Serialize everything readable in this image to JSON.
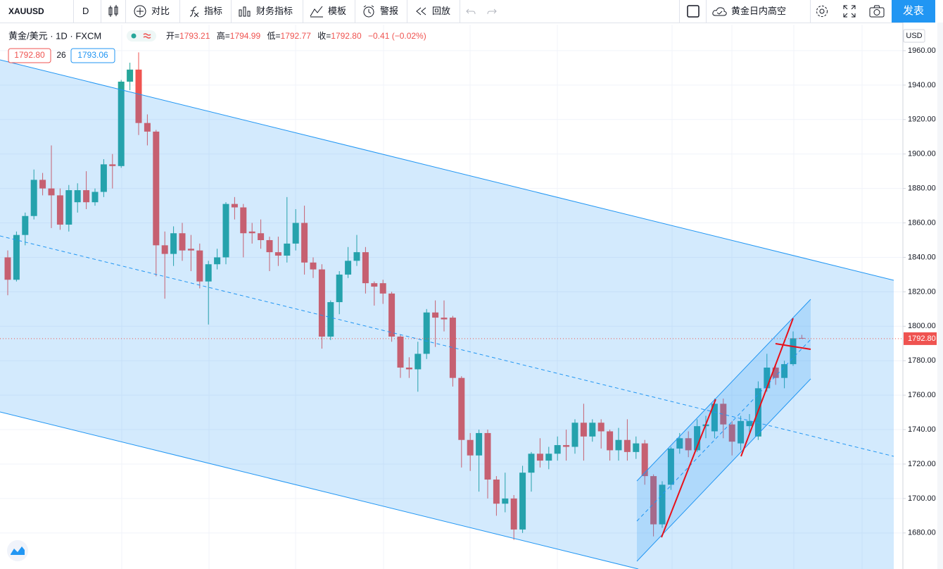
{
  "toolbar": {
    "symbol": "XAUUSD",
    "interval": "D",
    "buttons": [
      "对比",
      "指标",
      "财务指标",
      "模板",
      "警报",
      "回放"
    ],
    "layout_name": "黄金日内高空",
    "publish": "发表"
  },
  "legend": {
    "title": "黄金/美元 · 1D · FXCM",
    "open_label": "开=",
    "open": "1793.21",
    "high_label": "高=",
    "high": "1794.99",
    "low_label": "低=",
    "low": "1792.77",
    "close_label": "收=",
    "close": "1792.80",
    "change": "−0.41 (−0.02%)",
    "bid": "1792.80",
    "spread": "26",
    "ask": "1793.06"
  },
  "chart_data": {
    "type": "candlestick",
    "open": [
      1840,
      1827,
      1853,
      1864,
      1885,
      1880,
      1876,
      1859,
      1872,
      1879,
      1872,
      1878,
      1894,
      1893,
      1942,
      1949,
      1918,
      1913,
      1847,
      1842,
      1854,
      1845,
      1844,
      1826,
      1836,
      1840,
      1871,
      1869,
      1855,
      1854,
      1850,
      1843,
      1841,
      1848,
      1860,
      1837,
      1833,
      1794,
      1814,
      1830,
      1838,
      1843,
      1825,
      1825,
      1819,
      1794,
      1776,
      1775,
      1784,
      1808,
      1805,
      1805,
      1770,
      1734,
      1725,
      1738,
      1711,
      1697,
      1700,
      1682,
      1715,
      1726,
      1722,
      1726,
      1731,
      1730,
      1744,
      1736,
      1744,
      1739,
      1728,
      1734,
      1727,
      1732,
      1713,
      1685,
      1708,
      1729,
      1735,
      1728,
      1742,
      1739,
      1755,
      1743,
      1732,
      1742,
      1736,
      1764,
      1776,
      1770,
      1778,
      1793.21
    ],
    "high": [
      1844,
      1855,
      1866,
      1891,
      1889,
      1905,
      1880,
      1882,
      1883,
      1890,
      1880,
      1897,
      1900,
      1943,
      1953,
      1959,
      1923,
      1914,
      1855,
      1858,
      1860,
      1853,
      1848,
      1838,
      1845,
      1872,
      1875,
      1871,
      1860,
      1862,
      1852,
      1852,
      1875,
      1868,
      1870,
      1840,
      1836,
      1815,
      1832,
      1846,
      1853,
      1846,
      1826,
      1827,
      1820,
      1795,
      1782,
      1791,
      1810,
      1815,
      1815,
      1806,
      1771,
      1738,
      1740,
      1740,
      1713,
      1715,
      1702,
      1719,
      1727,
      1735,
      1730,
      1736,
      1740,
      1746,
      1755,
      1746,
      1746,
      1740,
      1741,
      1746,
      1736,
      1734,
      1714,
      1710,
      1730,
      1738,
      1739,
      1746,
      1748,
      1758,
      1758,
      1745,
      1748,
      1749,
      1768,
      1784,
      1777,
      1780,
      1797,
      1794.99
    ],
    "low": [
      1818,
      1826,
      1847,
      1862,
      1876,
      1857,
      1856,
      1855,
      1866,
      1868,
      1870,
      1875,
      1880,
      1892,
      1937,
      1911,
      1905,
      1829,
      1816,
      1835,
      1838,
      1832,
      1822,
      1801,
      1833,
      1836,
      1862,
      1840,
      1848,
      1845,
      1832,
      1835,
      1837,
      1844,
      1830,
      1828,
      1787,
      1792,
      1807,
      1828,
      1835,
      1819,
      1812,
      1813,
      1791,
      1770,
      1770,
      1762,
      1781,
      1788,
      1797,
      1765,
      1718,
      1716,
      1704,
      1700,
      1690,
      1692,
      1676,
      1680,
      1704,
      1718,
      1717,
      1722,
      1722,
      1726,
      1722,
      1733,
      1729,
      1722,
      1722,
      1722,
      1723,
      1708,
      1678,
      1683,
      1705,
      1726,
      1724,
      1727,
      1735,
      1735,
      1735,
      1725,
      1728,
      1737,
      1734,
      1762,
      1766,
      1764,
      1777,
      1792.77
    ],
    "close": [
      1827,
      1853,
      1864,
      1885,
      1880,
      1876,
      1859,
      1879,
      1879,
      1872,
      1878,
      1894,
      1893,
      1942,
      1949,
      1918,
      1913,
      1847,
      1842,
      1854,
      1844,
      1844,
      1826,
      1836,
      1840,
      1871,
      1869,
      1854,
      1854,
      1850,
      1843,
      1841,
      1848,
      1860,
      1837,
      1833,
      1794,
      1814,
      1830,
      1838,
      1843,
      1825,
      1823,
      1819,
      1794,
      1776,
      1775,
      1784,
      1808,
      1805,
      1804,
      1770,
      1734,
      1725,
      1738,
      1711,
      1697,
      1700,
      1682,
      1715,
      1726,
      1722,
      1726,
      1731,
      1730,
      1744,
      1736,
      1744,
      1739,
      1728,
      1734,
      1727,
      1732,
      1713,
      1685,
      1708,
      1729,
      1735,
      1728,
      1742,
      1743,
      1755,
      1743,
      1733,
      1745,
      1745,
      1764,
      1776,
      1770,
      1778,
      1793,
      1792.8
    ],
    "up_color": "#26a69a",
    "down_color": "#ef5350",
    "ylim": [
      1660.3,
      1975.1
    ],
    "yticks": [
      {
        "value": 1680,
        "label": "1680.00"
      },
      {
        "value": 1700,
        "label": "1700.00"
      },
      {
        "value": 1720,
        "label": "1720.00"
      },
      {
        "value": 1740,
        "label": "1740.00"
      },
      {
        "value": 1760,
        "label": "1760.00"
      },
      {
        "value": 1780,
        "label": "1780.00"
      },
      {
        "value": 1800,
        "label": "1800.00"
      },
      {
        "value": 1820,
        "label": "1820.00"
      },
      {
        "value": 1840,
        "label": "1840.00"
      },
      {
        "value": 1860,
        "label": "1860.00"
      },
      {
        "value": 1880,
        "label": "1880.00"
      },
      {
        "value": 1900,
        "label": "1900.00"
      },
      {
        "value": 1920,
        "label": "1920.00"
      },
      {
        "value": 1940,
        "label": "1940.00"
      },
      {
        "value": 1960,
        "label": "1960.00"
      }
    ],
    "grid": true,
    "currency": "USD",
    "last_price": {
      "value": 1792.8,
      "label": "1792.80"
    }
  }
}
